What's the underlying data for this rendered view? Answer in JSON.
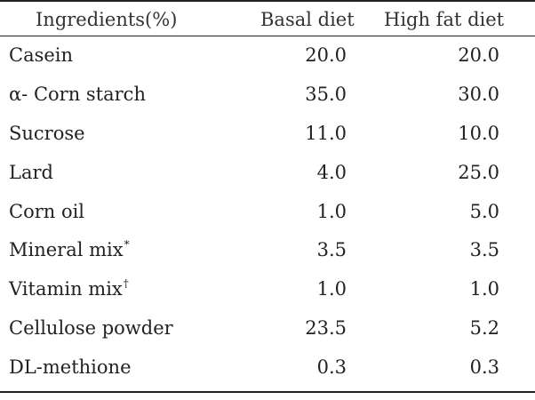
{
  "table": {
    "headers": {
      "ingredients": "Ingredients(%)",
      "basal": "Basal diet",
      "high_fat": "High fat diet"
    },
    "rows": [
      {
        "name": "Casein",
        "mark": "",
        "basal": "20.0",
        "high_fat": "20.0"
      },
      {
        "name": "α- Corn starch",
        "mark": "",
        "basal": "35.0",
        "high_fat": "30.0"
      },
      {
        "name": "Sucrose",
        "mark": "",
        "basal": "11.0",
        "high_fat": "10.0"
      },
      {
        "name": "Lard",
        "mark": "",
        "basal": "4.0",
        "high_fat": "25.0"
      },
      {
        "name": "Corn oil",
        "mark": "",
        "basal": "1.0",
        "high_fat": "5.0"
      },
      {
        "name": "Mineral mix",
        "mark": "*",
        "basal": "3.5",
        "high_fat": "3.5"
      },
      {
        "name": "Vitamin mix",
        "mark": "†",
        "basal": "1.0",
        "high_fat": "1.0"
      },
      {
        "name": "Cellulose powder",
        "mark": "",
        "basal": "23.5",
        "high_fat": "5.2"
      },
      {
        "name": "DL-methione",
        "mark": "",
        "basal": "0.3",
        "high_fat": "0.3"
      }
    ]
  }
}
